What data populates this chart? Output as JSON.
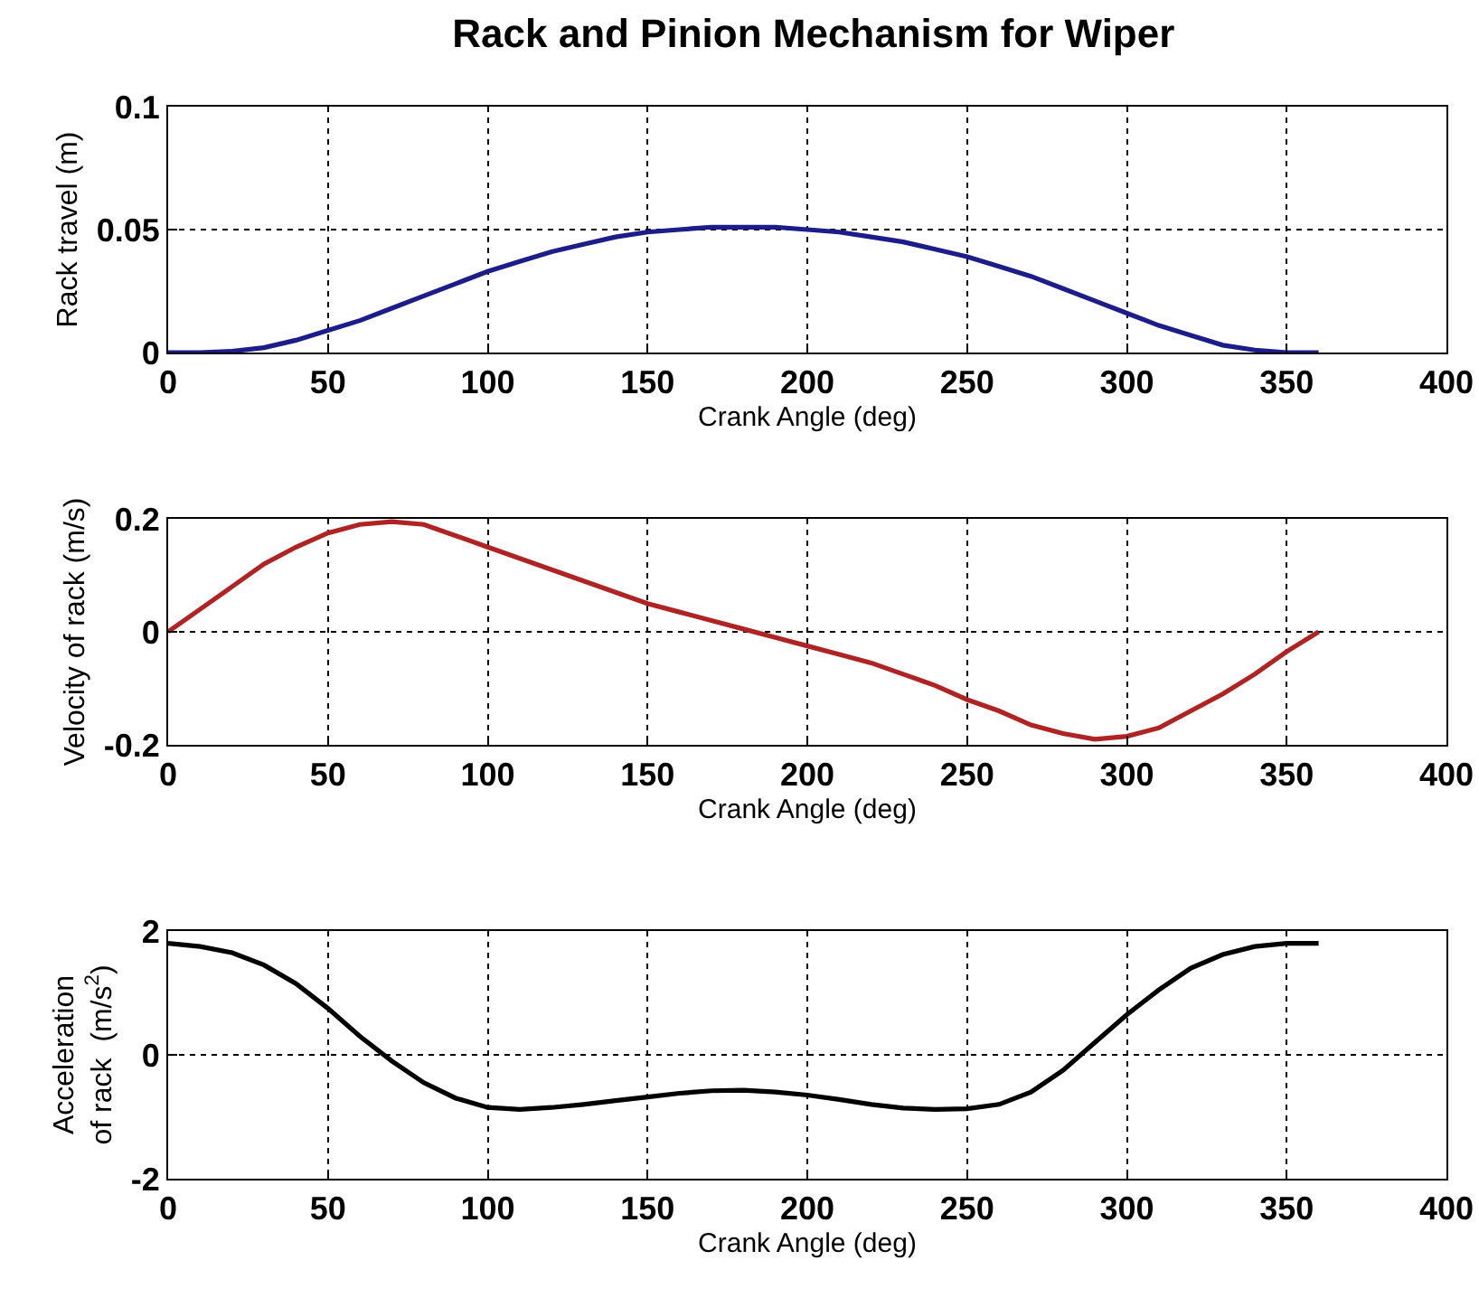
{
  "chart_data": [
    {
      "type": "line",
      "title": "Rack and Pinion Mechanism for Wiper",
      "xlabel": "Crank Angle (deg)",
      "ylabel": "Rack travel (m)",
      "x": [
        0,
        10,
        20,
        30,
        40,
        50,
        60,
        70,
        80,
        90,
        100,
        110,
        120,
        130,
        140,
        150,
        160,
        170,
        180,
        190,
        200,
        210,
        220,
        230,
        240,
        250,
        260,
        270,
        280,
        290,
        300,
        310,
        320,
        330,
        340,
        350,
        360
      ],
      "series": [
        {
          "color": "#1c1c8a",
          "values": [
            0,
            0,
            0.0005,
            0.002,
            0.005,
            0.009,
            0.013,
            0.018,
            0.023,
            0.028,
            0.033,
            0.037,
            0.041,
            0.044,
            0.047,
            0.049,
            0.05,
            0.051,
            0.051,
            0.051,
            0.05,
            0.049,
            0.047,
            0.045,
            0.042,
            0.039,
            0.035,
            0.031,
            0.026,
            0.021,
            0.016,
            0.011,
            0.007,
            0.003,
            0.001,
            0,
            0
          ]
        }
      ],
      "xlim": [
        0,
        400
      ],
      "xticks": [
        0,
        50,
        100,
        150,
        200,
        250,
        300,
        350,
        400
      ],
      "ylim": [
        0,
        0.1
      ],
      "yticks": [
        0,
        0.05,
        0.1
      ],
      "grid": true
    },
    {
      "type": "line",
      "xlabel": "Crank Angle (deg)",
      "ylabel": "Velocity of rack (m/s)",
      "x": [
        0,
        10,
        20,
        30,
        40,
        50,
        60,
        70,
        80,
        90,
        100,
        110,
        120,
        130,
        140,
        150,
        160,
        170,
        180,
        190,
        200,
        210,
        220,
        230,
        240,
        250,
        260,
        270,
        280,
        290,
        300,
        310,
        320,
        330,
        340,
        350,
        360
      ],
      "series": [
        {
          "color": "#b02323",
          "values": [
            0,
            0.04,
            0.08,
            0.12,
            0.15,
            0.175,
            0.19,
            0.195,
            0.19,
            0.17,
            0.15,
            0.13,
            0.11,
            0.09,
            0.07,
            0.05,
            0.035,
            0.02,
            0.005,
            -0.01,
            -0.025,
            -0.04,
            -0.055,
            -0.075,
            -0.095,
            -0.12,
            -0.14,
            -0.165,
            -0.18,
            -0.19,
            -0.185,
            -0.17,
            -0.14,
            -0.11,
            -0.075,
            -0.035,
            0
          ]
        }
      ],
      "xlim": [
        0,
        400
      ],
      "xticks": [
        0,
        50,
        100,
        150,
        200,
        250,
        300,
        350,
        400
      ],
      "ylim": [
        -0.2,
        0.2
      ],
      "yticks": [
        -0.2,
        0,
        0.2
      ],
      "grid": true
    },
    {
      "type": "line",
      "xlabel": "Crank Angle (deg)",
      "ylabel": "Acceleration\nof rack  (m/s$^{2}$)",
      "x": [
        0,
        10,
        20,
        30,
        40,
        50,
        60,
        70,
        80,
        90,
        100,
        110,
        120,
        130,
        140,
        150,
        160,
        170,
        180,
        190,
        200,
        210,
        220,
        230,
        240,
        250,
        260,
        270,
        280,
        290,
        300,
        310,
        320,
        330,
        340,
        350,
        360
      ],
      "series": [
        {
          "color": "#000000",
          "values": [
            1.8,
            1.75,
            1.65,
            1.45,
            1.15,
            0.75,
            0.3,
            -0.1,
            -0.45,
            -0.7,
            -0.85,
            -0.88,
            -0.85,
            -0.8,
            -0.74,
            -0.68,
            -0.62,
            -0.58,
            -0.57,
            -0.6,
            -0.65,
            -0.72,
            -0.8,
            -0.86,
            -0.88,
            -0.87,
            -0.8,
            -0.6,
            -0.25,
            0.2,
            0.65,
            1.05,
            1.4,
            1.62,
            1.75,
            1.8,
            1.8
          ]
        }
      ],
      "xlim": [
        0,
        400
      ],
      "xticks": [
        0,
        50,
        100,
        150,
        200,
        250,
        300,
        350,
        400
      ],
      "ylim": [
        -2,
        2
      ],
      "yticks": [
        -2,
        0,
        2
      ],
      "grid": true
    }
  ]
}
